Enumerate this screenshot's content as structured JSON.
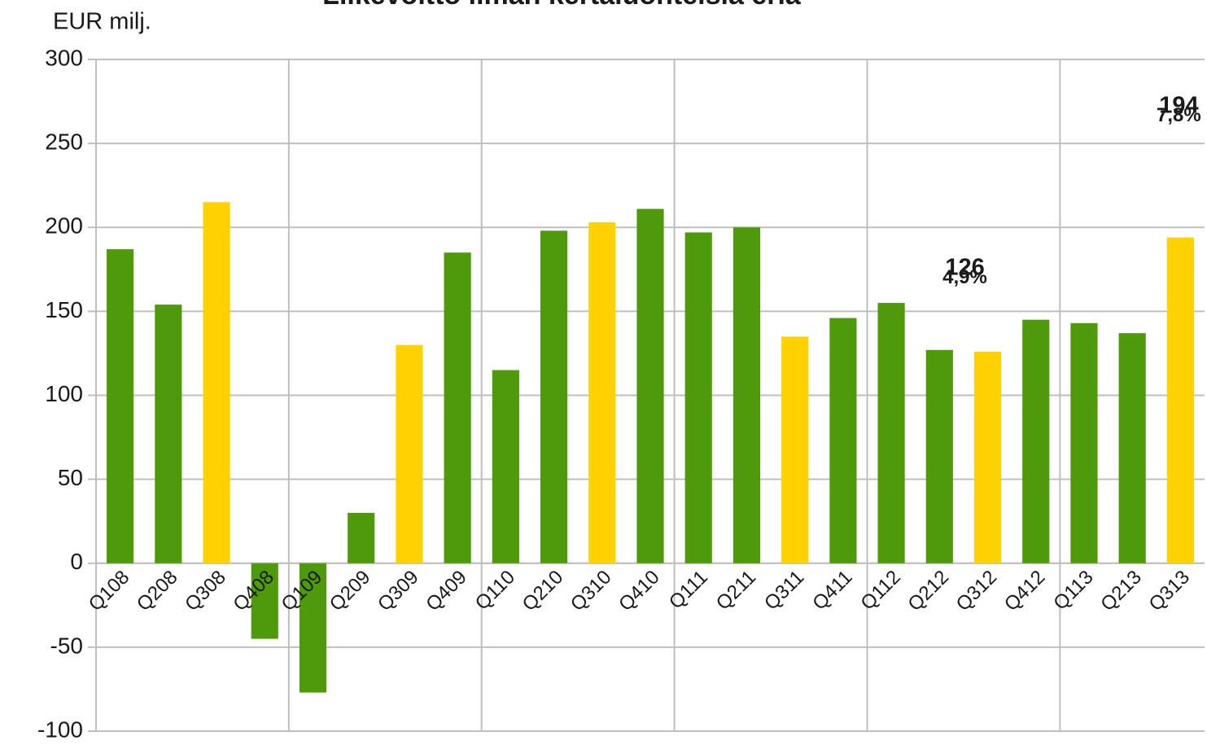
{
  "chart_data": {
    "type": "bar",
    "title": "Liikevoitto ilman kertaluonteisia eriä",
    "y_label": "EUR milj.",
    "categories": [
      "Q108",
      "Q208",
      "Q308",
      "Q408",
      "Q109",
      "Q209",
      "Q309",
      "Q409",
      "Q110",
      "Q210",
      "Q310",
      "Q410",
      "Q111",
      "Q211",
      "Q311",
      "Q411",
      "Q112",
      "Q212",
      "Q312",
      "Q412",
      "Q113",
      "Q213",
      "Q313"
    ],
    "values": [
      187,
      154,
      215,
      -45,
      -77,
      30,
      130,
      185,
      115,
      198,
      203,
      211,
      197,
      200,
      135,
      146,
      155,
      127,
      126,
      145,
      143,
      137,
      194
    ],
    "value_labels": [
      null,
      null,
      null,
      null,
      null,
      null,
      null,
      null,
      null,
      null,
      null,
      null,
      null,
      null,
      null,
      null,
      null,
      null,
      "126",
      null,
      null,
      null,
      "194"
    ],
    "margin_labels": [
      null,
      null,
      null,
      null,
      null,
      null,
      null,
      null,
      null,
      null,
      null,
      null,
      null,
      null,
      null,
      null,
      null,
      null,
      "4,9%",
      null,
      null,
      null,
      "7,8%"
    ],
    "colors": [
      "#4e9a0a",
      "#4e9a0a",
      "#ffd200",
      "#4e9a0a",
      "#4e9a0a",
      "#4e9a0a",
      "#ffd200",
      "#4e9a0a",
      "#4e9a0a",
      "#4e9a0a",
      "#ffd200",
      "#4e9a0a",
      "#4e9a0a",
      "#4e9a0a",
      "#ffd200",
      "#4e9a0a",
      "#4e9a0a",
      "#4e9a0a",
      "#ffd200",
      "#4e9a0a",
      "#4e9a0a",
      "#4e9a0a",
      "#ffd200"
    ],
    "ylim": [
      -100,
      300
    ],
    "yticks": [
      -100,
      -50,
      0,
      50,
      100,
      150,
      200,
      250,
      300
    ],
    "grid": true,
    "vertical_grid_every": 4
  }
}
